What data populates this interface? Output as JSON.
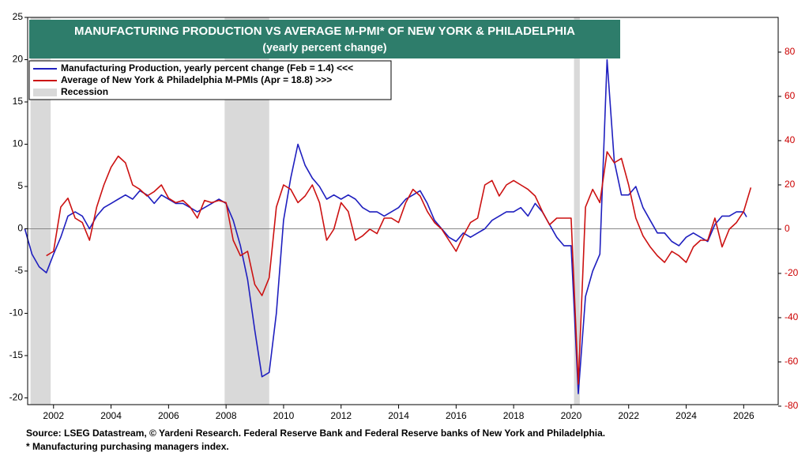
{
  "chart_data": {
    "type": "line",
    "title": "MANUFACTURING PRODUCTION VS AVERAGE M-PMI* OF NEW YORK & PHILADELPHIA",
    "subtitle": "(yearly percent change)",
    "source": "Source: LSEG Datastream, © Yardeni Research. Federal Reserve Bank and Federal Reserve banks of New York and Philadelphia.",
    "footnote": "* Manufacturing purchasing managers index.",
    "xlim": [
      2001.1,
      2027.2
    ],
    "xticks": [
      2002,
      2004,
      2006,
      2008,
      2010,
      2012,
      2014,
      2016,
      2018,
      2020,
      2022,
      2024,
      2026
    ],
    "ylim": [
      -20.8,
      25
    ],
    "yticks": [
      -20,
      -15,
      -10,
      -5,
      0,
      5,
      10,
      15,
      20,
      25
    ],
    "y2lim": [
      -79.3,
      95.7
    ],
    "y2ticks": [
      -80,
      -60,
      -40,
      -20,
      0,
      20,
      40,
      60,
      80
    ],
    "y2color": "#cc0000",
    "recession_label": "Recession",
    "recession_color": "#d9d9d9",
    "recessions": [
      [
        2001.2,
        2001.9
      ],
      [
        2007.95,
        2009.5
      ],
      [
        2020.1,
        2020.3
      ]
    ],
    "series": [
      {
        "name": "Manufacturing Production, yearly percent change  (Feb = 1.4) <<<",
        "color": "#1f1fbf",
        "axis": "y",
        "x": [
          2001,
          2001.25,
          2001.5,
          2001.75,
          2002,
          2002.25,
          2002.5,
          2002.75,
          2003,
          2003.25,
          2003.5,
          2003.75,
          2004,
          2004.25,
          2004.5,
          2004.75,
          2005,
          2005.25,
          2005.5,
          2005.75,
          2006,
          2006.25,
          2006.5,
          2006.75,
          2007,
          2007.25,
          2007.5,
          2007.75,
          2008,
          2008.25,
          2008.5,
          2008.75,
          2009,
          2009.25,
          2009.5,
          2009.75,
          2010,
          2010.25,
          2010.5,
          2010.75,
          2011,
          2011.25,
          2011.5,
          2011.75,
          2012,
          2012.25,
          2012.5,
          2012.75,
          2013,
          2013.25,
          2013.5,
          2013.75,
          2014,
          2014.25,
          2014.5,
          2014.75,
          2015,
          2015.25,
          2015.5,
          2015.75,
          2016,
          2016.25,
          2016.5,
          2016.75,
          2017,
          2017.25,
          2017.5,
          2017.75,
          2018,
          2018.25,
          2018.5,
          2018.75,
          2019,
          2019.25,
          2019.5,
          2019.75,
          2020,
          2020.25,
          2020.5,
          2020.75,
          2021,
          2021.25,
          2021.5,
          2021.75,
          2022,
          2022.25,
          2022.5,
          2022.75,
          2023,
          2023.25,
          2023.5,
          2023.75,
          2024,
          2024.25,
          2024.5,
          2024.75,
          2025,
          2025.25,
          2025.5,
          2025.75,
          2026,
          2026.1
        ],
        "values": [
          0,
          -3,
          -4.5,
          -5.2,
          -3,
          -1,
          1.5,
          2,
          1.5,
          0,
          1.5,
          2.5,
          3,
          3.5,
          4,
          3.5,
          4.5,
          4,
          3,
          4,
          3.5,
          3,
          3,
          2.5,
          2,
          2.5,
          3,
          3.5,
          3,
          1,
          -2,
          -6,
          -12,
          -17.5,
          -17,
          -10,
          1,
          6,
          10,
          7.5,
          6,
          5,
          3.5,
          4,
          3.5,
          4,
          3.5,
          2.5,
          2,
          2,
          1.5,
          2,
          2.5,
          3.5,
          4,
          4.5,
          3,
          1,
          0,
          -1,
          -1.5,
          -0.5,
          -1,
          -0.5,
          0,
          1,
          1.5,
          2,
          2,
          2.5,
          1.5,
          3,
          2,
          0.5,
          -1,
          -2,
          -2,
          -19.5,
          -8,
          -5,
          -3,
          20,
          8,
          4,
          4,
          5,
          2.5,
          1,
          -0.5,
          -0.5,
          -1.5,
          -2,
          -1,
          -0.5,
          -1,
          -1.5,
          0.5,
          1.5,
          1.5,
          2,
          2,
          1.4
        ]
      },
      {
        "name": "Average of New York & Philadelphia M-PMIs (Apr = 18.8) >>>",
        "color": "#cc1111",
        "axis": "y2",
        "x": [
          2001.75,
          2002,
          2002.25,
          2002.5,
          2002.75,
          2003,
          2003.25,
          2003.5,
          2003.75,
          2004,
          2004.25,
          2004.5,
          2004.75,
          2005,
          2005.25,
          2005.5,
          2005.75,
          2006,
          2006.25,
          2006.5,
          2006.75,
          2007,
          2007.25,
          2007.5,
          2007.75,
          2008,
          2008.25,
          2008.5,
          2008.75,
          2009,
          2009.25,
          2009.5,
          2009.75,
          2010,
          2010.25,
          2010.5,
          2010.75,
          2011,
          2011.25,
          2011.5,
          2011.75,
          2012,
          2012.25,
          2012.5,
          2012.75,
          2013,
          2013.25,
          2013.5,
          2013.75,
          2014,
          2014.25,
          2014.5,
          2014.75,
          2015,
          2015.25,
          2015.5,
          2015.75,
          2016,
          2016.25,
          2016.5,
          2016.75,
          2017,
          2017.25,
          2017.5,
          2017.75,
          2018,
          2018.25,
          2018.5,
          2018.75,
          2019,
          2019.25,
          2019.5,
          2019.75,
          2020,
          2020.25,
          2020.5,
          2020.75,
          2021,
          2021.25,
          2021.5,
          2021.75,
          2022,
          2022.25,
          2022.5,
          2022.75,
          2023,
          2023.25,
          2023.5,
          2023.75,
          2024,
          2024.25,
          2024.5,
          2024.75,
          2025,
          2025.25,
          2025.5,
          2025.75,
          2026,
          2026.25
        ],
        "values": [
          -12,
          -10,
          10,
          14,
          5,
          3,
          -5,
          10,
          20,
          28,
          33,
          30,
          20,
          18,
          15,
          17,
          20,
          14,
          12,
          13,
          10,
          5,
          13,
          12,
          13,
          12,
          -5,
          -12,
          -10,
          -25,
          -30,
          -22,
          10,
          20,
          18,
          12,
          15,
          20,
          12,
          -5,
          0,
          12,
          8,
          -5,
          -3,
          0,
          -2,
          5,
          5,
          3,
          12,
          18,
          15,
          8,
          3,
          0,
          -5,
          -10,
          -3,
          3,
          5,
          20,
          22,
          15,
          20,
          22,
          20,
          18,
          15,
          8,
          2,
          5,
          5,
          5,
          -70,
          10,
          18,
          12,
          35,
          30,
          32,
          20,
          5,
          -3,
          -8,
          -12,
          -15,
          -10,
          -12,
          -15,
          -8,
          -5,
          -5,
          5,
          -8,
          0,
          3,
          8,
          18.8
        ]
      }
    ]
  }
}
